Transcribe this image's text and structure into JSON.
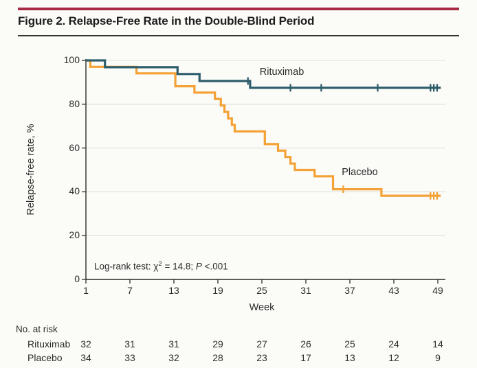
{
  "figure": {
    "title": "Figure 2. Relapse-Free Rate in the Double-Blind Period"
  },
  "colors": {
    "accent_rule": "#A72B45",
    "title_divider": "#333333",
    "rituximab": "#2D5D6B",
    "placebo": "#F4A135",
    "gridline": "#E3E3E0",
    "axis": "#2B2B2B",
    "background": "#FBFBF8"
  },
  "chart_data": {
    "type": "line",
    "subtype": "kaplan-meier-step",
    "title": "Relapse-Free Rate in the Double-Blind Period",
    "xlabel": "Week",
    "ylabel": "Relapse-free rate, %",
    "xlim": [
      1,
      49
    ],
    "ylim": [
      0,
      100
    ],
    "xticks": [
      1,
      7,
      13,
      19,
      25,
      31,
      37,
      43,
      49
    ],
    "yticks": [
      0,
      20,
      40,
      60,
      80,
      100
    ],
    "grid": "horizontal",
    "annotation": {
      "prefix": "Log-rank test: χ",
      "sup": "2",
      "mid": " = 14.8; ",
      "p": "P",
      "suffix": " <.001"
    },
    "series": [
      {
        "name": "Rituximab",
        "color": "#2D5D6B",
        "label_anchor": {
          "week": 24.7,
          "pct": 97.3
        },
        "points": [
          [
            1,
            100
          ],
          [
            3.6,
            100
          ],
          [
            3.6,
            96.9
          ],
          [
            13.5,
            96.9
          ],
          [
            13.5,
            93.8
          ],
          [
            16.5,
            93.8
          ],
          [
            16.5,
            90.6
          ],
          [
            23.4,
            90.6
          ],
          [
            23.4,
            87.5
          ],
          [
            49.4,
            87.5
          ]
        ],
        "censors": [
          [
            23.1,
            90.6
          ],
          [
            28.9,
            87.5
          ],
          [
            33.1,
            87.5
          ],
          [
            40.8,
            87.5
          ],
          [
            48.0,
            87.5
          ],
          [
            48.45,
            87.5
          ],
          [
            48.9,
            87.5
          ]
        ]
      },
      {
        "name": "Placebo",
        "color": "#F4A135",
        "label_anchor": {
          "week": 35.9,
          "pct": 51.5
        },
        "points": [
          [
            1,
            100
          ],
          [
            1.6,
            100
          ],
          [
            1.6,
            97.1
          ],
          [
            7.9,
            97.1
          ],
          [
            7.9,
            94.1
          ],
          [
            13.2,
            94.1
          ],
          [
            13.2,
            88.2
          ],
          [
            15.8,
            88.2
          ],
          [
            15.8,
            85.3
          ],
          [
            18.6,
            85.3
          ],
          [
            18.6,
            82.4
          ],
          [
            19.4,
            82.4
          ],
          [
            19.4,
            79.4
          ],
          [
            19.9,
            79.4
          ],
          [
            19.9,
            76.5
          ],
          [
            20.4,
            76.5
          ],
          [
            20.4,
            73.5
          ],
          [
            20.9,
            73.5
          ],
          [
            20.9,
            70.6
          ],
          [
            21.3,
            70.6
          ],
          [
            21.3,
            67.6
          ],
          [
            25.4,
            67.6
          ],
          [
            25.4,
            61.8
          ],
          [
            27.2,
            61.8
          ],
          [
            27.2,
            58.8
          ],
          [
            28.2,
            58.8
          ],
          [
            28.2,
            55.9
          ],
          [
            28.9,
            55.9
          ],
          [
            28.9,
            52.9
          ],
          [
            29.5,
            52.9
          ],
          [
            29.5,
            50
          ],
          [
            32.2,
            50
          ],
          [
            32.2,
            47.1
          ],
          [
            34.7,
            47.1
          ],
          [
            34.7,
            41.2
          ],
          [
            41.3,
            41.2
          ],
          [
            41.3,
            38.2
          ],
          [
            49.4,
            38.2
          ]
        ],
        "censors": [
          [
            36.1,
            41.2
          ],
          [
            48.0,
            38.2
          ],
          [
            48.45,
            38.2
          ],
          [
            48.9,
            38.2
          ]
        ]
      }
    ]
  },
  "risk_table": {
    "heading": "No. at risk",
    "weeks": [
      1,
      7,
      13,
      19,
      25,
      31,
      37,
      43,
      49
    ],
    "rows": [
      {
        "label": "Rituximab",
        "values": [
          "32",
          "31",
          "31",
          "29",
          "27",
          "26",
          "25",
          "24",
          "14"
        ]
      },
      {
        "label": "Placebo",
        "values": [
          "34",
          "33",
          "32",
          "28",
          "23",
          "17",
          "13",
          "12",
          "9"
        ]
      }
    ]
  }
}
